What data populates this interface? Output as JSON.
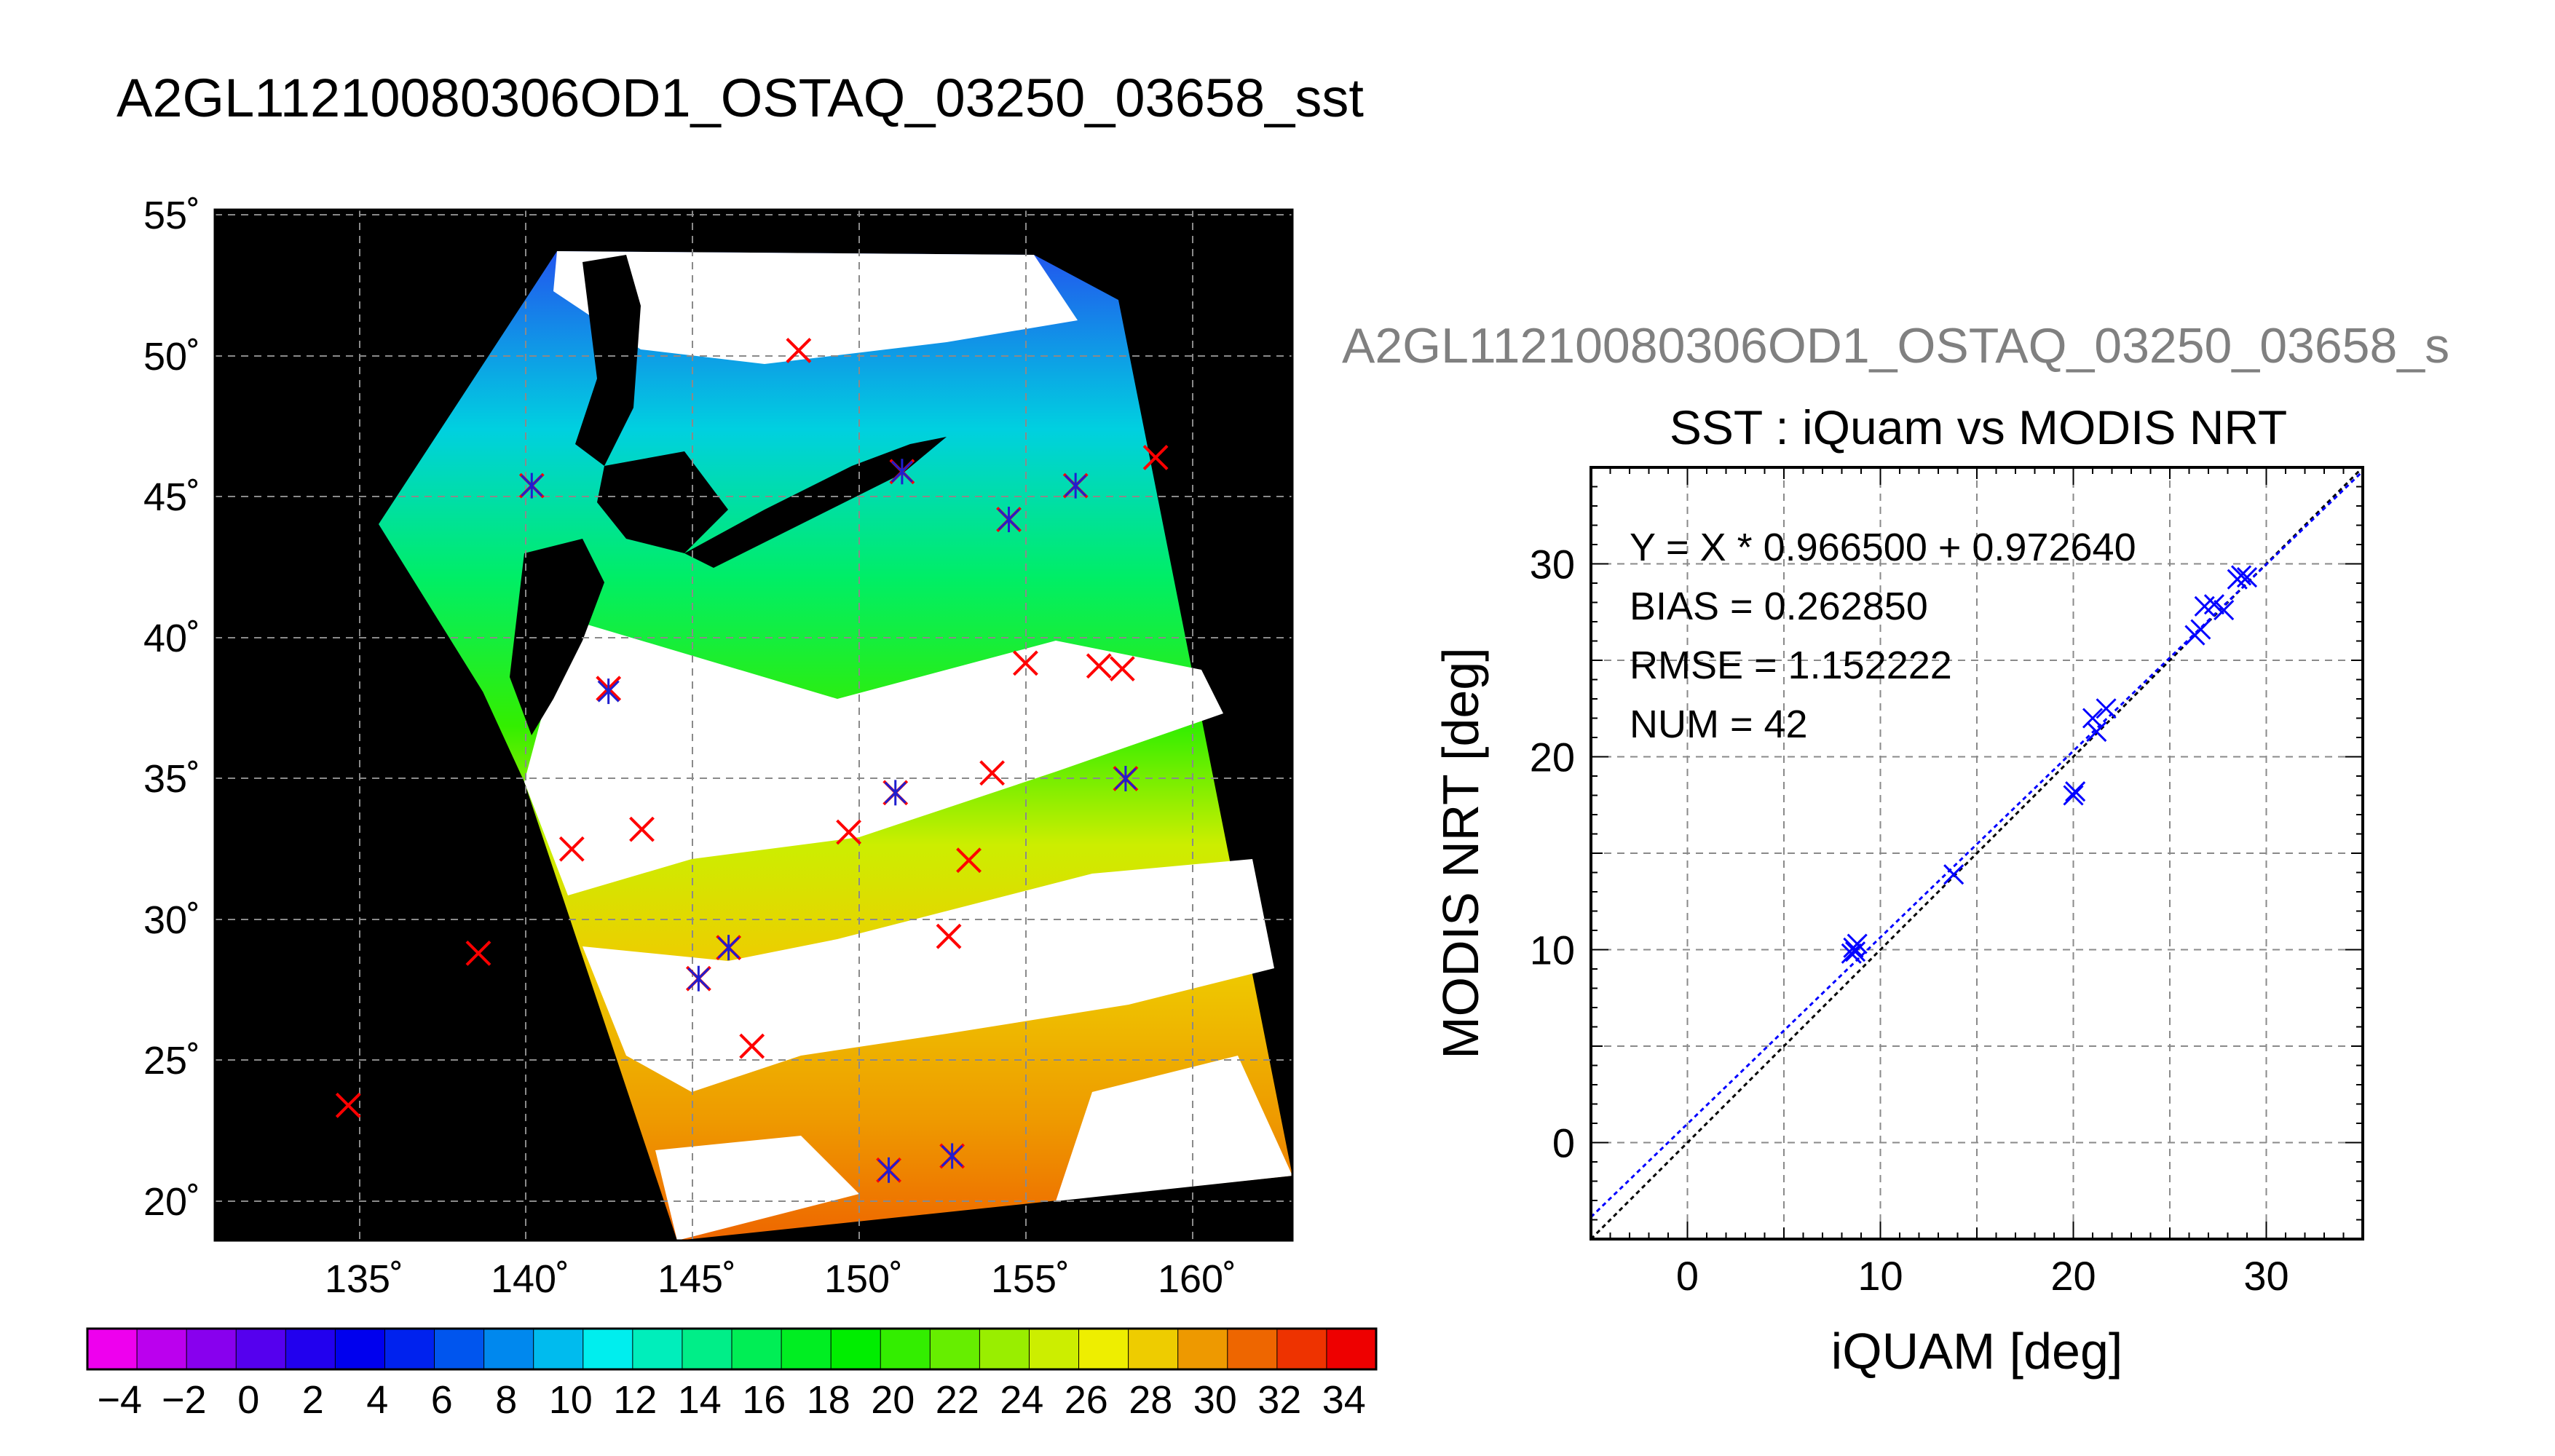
{
  "figure": {
    "title": "A2GL11210080306OD1_OSTAQ_03250_03658_sst",
    "subtitle": "A2GL11210080306OD1_OSTAQ_03250_03658_s"
  },
  "chart_data": [
    {
      "type": "scatter",
      "title": "",
      "description": "SST map with matchup markers",
      "xlabel": "",
      "ylabel": "",
      "x_ticks": [
        "135˚",
        "140˚",
        "145˚",
        "150˚",
        "155˚",
        "160˚"
      ],
      "y_ticks": [
        "55˚",
        "50˚",
        "45˚",
        "40˚",
        "35˚",
        "30˚",
        "25˚",
        "20˚"
      ],
      "xlim": [
        130.8,
        163.1
      ],
      "ylim": [
        18.7,
        55.3
      ],
      "grid": true,
      "series": [
        {
          "marker_color": "#ff0000",
          "points": [
            [
              140.3,
              45.5
            ],
            [
              142.6,
              38.3
            ],
            [
              148.3,
              50.3
            ],
            [
              151.4,
              46.0
            ],
            [
              154.6,
              44.3
            ],
            [
              156.6,
              45.5
            ],
            [
              159.0,
              46.5
            ],
            [
              155.1,
              39.2
            ],
            [
              157.3,
              39.1
            ],
            [
              158.0,
              39.0
            ],
            [
              141.5,
              32.6
            ],
            [
              143.6,
              33.3
            ],
            [
              149.8,
              33.2
            ],
            [
              151.2,
              34.6
            ],
            [
              153.4,
              32.2
            ],
            [
              154.1,
              35.3
            ],
            [
              158.1,
              35.1
            ],
            [
              138.7,
              28.9
            ],
            [
              145.3,
              28.0
            ],
            [
              146.2,
              29.1
            ],
            [
              146.9,
              25.6
            ],
            [
              152.8,
              29.5
            ],
            [
              151.0,
              21.2
            ],
            [
              152.9,
              21.7
            ],
            [
              134.8,
              23.5
            ]
          ]
        },
        {
          "marker_color": "#1f1fd0",
          "points": [
            [
              140.3,
              45.5
            ],
            [
              142.6,
              38.2
            ],
            [
              151.4,
              46.0
            ],
            [
              154.6,
              44.3
            ],
            [
              156.6,
              45.5
            ],
            [
              151.2,
              34.6
            ],
            [
              158.1,
              35.1
            ],
            [
              145.3,
              28.0
            ],
            [
              146.2,
              29.1
            ],
            [
              151.0,
              21.2
            ],
            [
              152.9,
              21.7
            ]
          ]
        }
      ]
    },
    {
      "type": "scatter",
      "title": "SST : iQuam vs MODIS NRT",
      "xlabel": "iQUAM [deg]",
      "ylabel": "MODIS NRT [deg]",
      "xlim": [
        -5,
        35
      ],
      "ylim": [
        -5,
        35
      ],
      "x_ticks": [
        0,
        10,
        20,
        30
      ],
      "y_ticks": [
        0,
        10,
        20,
        30
      ],
      "grid": true,
      "annotations": [
        "Y = X * 0.966500 + 0.972640",
        "BIAS = 0.262850",
        "RMSE = 1.152222",
        "NUM = 42"
      ],
      "fit_line": {
        "slope": 0.9665,
        "intercept": 0.97264,
        "color": "#0000ff"
      },
      "identity_line": {
        "slope": 1,
        "intercept": 0,
        "color": "#000000"
      },
      "marker_color": "#0000ff",
      "points": [
        [
          8.5,
          9.8
        ],
        [
          8.8,
          10.3
        ],
        [
          8.7,
          9.9
        ],
        [
          8.6,
          10.1
        ],
        [
          13.8,
          13.9
        ],
        [
          20.0,
          18.0
        ],
        [
          20.1,
          18.2
        ],
        [
          21.0,
          22.0
        ],
        [
          21.2,
          21.3
        ],
        [
          21.7,
          22.5
        ],
        [
          26.3,
          26.3
        ],
        [
          26.6,
          26.6
        ],
        [
          26.8,
          27.8
        ],
        [
          27.3,
          27.9
        ],
        [
          27.8,
          27.6
        ],
        [
          28.5,
          29.2
        ],
        [
          28.7,
          29.4
        ],
        [
          29.0,
          29.3
        ]
      ]
    },
    {
      "type": "heatmap",
      "description": "Colorbar",
      "tick_labels": [
        "−4",
        "−2",
        "0",
        "2",
        "4",
        "6",
        "8",
        "10",
        "12",
        "14",
        "16",
        "18",
        "20",
        "22",
        "24",
        "26",
        "28",
        "30",
        "32",
        "34"
      ],
      "range": [
        -5,
        35
      ],
      "colors": [
        "#ee00ee",
        "#bb00ee",
        "#8800ee",
        "#5500ee",
        "#2200ee",
        "#0000ee",
        "#0022ee",
        "#0055ee",
        "#0088ee",
        "#00bbee",
        "#00eeee",
        "#00eebb",
        "#00ee88",
        "#00ee55",
        "#00ee22",
        "#00ee00",
        "#33ee00",
        "#66ee00",
        "#99ee00",
        "#ccee00",
        "#eeee00",
        "#eecc00",
        "#ee9900",
        "#ee6600",
        "#ee3300",
        "#ee0000"
      ]
    }
  ]
}
